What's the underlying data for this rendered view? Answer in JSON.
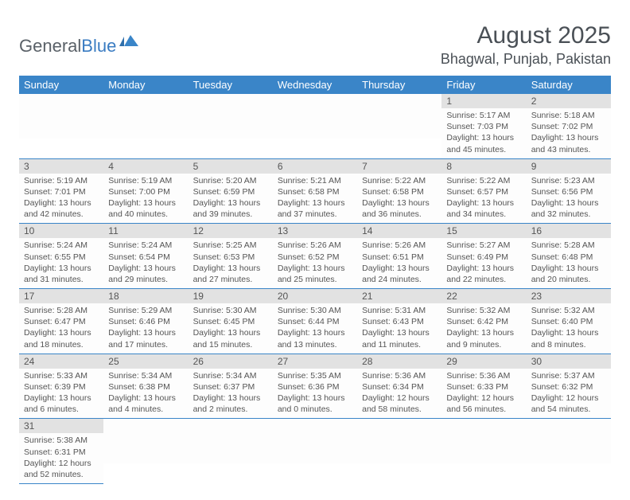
{
  "brand": {
    "part1": "General",
    "part2": "Blue"
  },
  "title": "August 2025",
  "location": "Bhagwal, Punjab, Pakistan",
  "colors": {
    "header_bg": "#3a85c8",
    "header_text": "#ffffff",
    "daynum_bg": "#e2e2e2",
    "text": "#555555",
    "row_border": "#3a85c8",
    "brand_gray": "#5a6168",
    "brand_blue": "#3a7cc2"
  },
  "day_headers": [
    "Sunday",
    "Monday",
    "Tuesday",
    "Wednesday",
    "Thursday",
    "Friday",
    "Saturday"
  ],
  "weeks": [
    [
      {
        "n": "",
        "sr": "",
        "ss": "",
        "dl": ""
      },
      {
        "n": "",
        "sr": "",
        "ss": "",
        "dl": ""
      },
      {
        "n": "",
        "sr": "",
        "ss": "",
        "dl": ""
      },
      {
        "n": "",
        "sr": "",
        "ss": "",
        "dl": ""
      },
      {
        "n": "",
        "sr": "",
        "ss": "",
        "dl": ""
      },
      {
        "n": "1",
        "sr": "Sunrise: 5:17 AM",
        "ss": "Sunset: 7:03 PM",
        "dl": "Daylight: 13 hours and 45 minutes."
      },
      {
        "n": "2",
        "sr": "Sunrise: 5:18 AM",
        "ss": "Sunset: 7:02 PM",
        "dl": "Daylight: 13 hours and 43 minutes."
      }
    ],
    [
      {
        "n": "3",
        "sr": "Sunrise: 5:19 AM",
        "ss": "Sunset: 7:01 PM",
        "dl": "Daylight: 13 hours and 42 minutes."
      },
      {
        "n": "4",
        "sr": "Sunrise: 5:19 AM",
        "ss": "Sunset: 7:00 PM",
        "dl": "Daylight: 13 hours and 40 minutes."
      },
      {
        "n": "5",
        "sr": "Sunrise: 5:20 AM",
        "ss": "Sunset: 6:59 PM",
        "dl": "Daylight: 13 hours and 39 minutes."
      },
      {
        "n": "6",
        "sr": "Sunrise: 5:21 AM",
        "ss": "Sunset: 6:58 PM",
        "dl": "Daylight: 13 hours and 37 minutes."
      },
      {
        "n": "7",
        "sr": "Sunrise: 5:22 AM",
        "ss": "Sunset: 6:58 PM",
        "dl": "Daylight: 13 hours and 36 minutes."
      },
      {
        "n": "8",
        "sr": "Sunrise: 5:22 AM",
        "ss": "Sunset: 6:57 PM",
        "dl": "Daylight: 13 hours and 34 minutes."
      },
      {
        "n": "9",
        "sr": "Sunrise: 5:23 AM",
        "ss": "Sunset: 6:56 PM",
        "dl": "Daylight: 13 hours and 32 minutes."
      }
    ],
    [
      {
        "n": "10",
        "sr": "Sunrise: 5:24 AM",
        "ss": "Sunset: 6:55 PM",
        "dl": "Daylight: 13 hours and 31 minutes."
      },
      {
        "n": "11",
        "sr": "Sunrise: 5:24 AM",
        "ss": "Sunset: 6:54 PM",
        "dl": "Daylight: 13 hours and 29 minutes."
      },
      {
        "n": "12",
        "sr": "Sunrise: 5:25 AM",
        "ss": "Sunset: 6:53 PM",
        "dl": "Daylight: 13 hours and 27 minutes."
      },
      {
        "n": "13",
        "sr": "Sunrise: 5:26 AM",
        "ss": "Sunset: 6:52 PM",
        "dl": "Daylight: 13 hours and 25 minutes."
      },
      {
        "n": "14",
        "sr": "Sunrise: 5:26 AM",
        "ss": "Sunset: 6:51 PM",
        "dl": "Daylight: 13 hours and 24 minutes."
      },
      {
        "n": "15",
        "sr": "Sunrise: 5:27 AM",
        "ss": "Sunset: 6:49 PM",
        "dl": "Daylight: 13 hours and 22 minutes."
      },
      {
        "n": "16",
        "sr": "Sunrise: 5:28 AM",
        "ss": "Sunset: 6:48 PM",
        "dl": "Daylight: 13 hours and 20 minutes."
      }
    ],
    [
      {
        "n": "17",
        "sr": "Sunrise: 5:28 AM",
        "ss": "Sunset: 6:47 PM",
        "dl": "Daylight: 13 hours and 18 minutes."
      },
      {
        "n": "18",
        "sr": "Sunrise: 5:29 AM",
        "ss": "Sunset: 6:46 PM",
        "dl": "Daylight: 13 hours and 17 minutes."
      },
      {
        "n": "19",
        "sr": "Sunrise: 5:30 AM",
        "ss": "Sunset: 6:45 PM",
        "dl": "Daylight: 13 hours and 15 minutes."
      },
      {
        "n": "20",
        "sr": "Sunrise: 5:30 AM",
        "ss": "Sunset: 6:44 PM",
        "dl": "Daylight: 13 hours and 13 minutes."
      },
      {
        "n": "21",
        "sr": "Sunrise: 5:31 AM",
        "ss": "Sunset: 6:43 PM",
        "dl": "Daylight: 13 hours and 11 minutes."
      },
      {
        "n": "22",
        "sr": "Sunrise: 5:32 AM",
        "ss": "Sunset: 6:42 PM",
        "dl": "Daylight: 13 hours and 9 minutes."
      },
      {
        "n": "23",
        "sr": "Sunrise: 5:32 AM",
        "ss": "Sunset: 6:40 PM",
        "dl": "Daylight: 13 hours and 8 minutes."
      }
    ],
    [
      {
        "n": "24",
        "sr": "Sunrise: 5:33 AM",
        "ss": "Sunset: 6:39 PM",
        "dl": "Daylight: 13 hours and 6 minutes."
      },
      {
        "n": "25",
        "sr": "Sunrise: 5:34 AM",
        "ss": "Sunset: 6:38 PM",
        "dl": "Daylight: 13 hours and 4 minutes."
      },
      {
        "n": "26",
        "sr": "Sunrise: 5:34 AM",
        "ss": "Sunset: 6:37 PM",
        "dl": "Daylight: 13 hours and 2 minutes."
      },
      {
        "n": "27",
        "sr": "Sunrise: 5:35 AM",
        "ss": "Sunset: 6:36 PM",
        "dl": "Daylight: 13 hours and 0 minutes."
      },
      {
        "n": "28",
        "sr": "Sunrise: 5:36 AM",
        "ss": "Sunset: 6:34 PM",
        "dl": "Daylight: 12 hours and 58 minutes."
      },
      {
        "n": "29",
        "sr": "Sunrise: 5:36 AM",
        "ss": "Sunset: 6:33 PM",
        "dl": "Daylight: 12 hours and 56 minutes."
      },
      {
        "n": "30",
        "sr": "Sunrise: 5:37 AM",
        "ss": "Sunset: 6:32 PM",
        "dl": "Daylight: 12 hours and 54 minutes."
      }
    ],
    [
      {
        "n": "31",
        "sr": "Sunrise: 5:38 AM",
        "ss": "Sunset: 6:31 PM",
        "dl": "Daylight: 12 hours and 52 minutes."
      },
      {
        "n": "",
        "sr": "",
        "ss": "",
        "dl": ""
      },
      {
        "n": "",
        "sr": "",
        "ss": "",
        "dl": ""
      },
      {
        "n": "",
        "sr": "",
        "ss": "",
        "dl": ""
      },
      {
        "n": "",
        "sr": "",
        "ss": "",
        "dl": ""
      },
      {
        "n": "",
        "sr": "",
        "ss": "",
        "dl": ""
      },
      {
        "n": "",
        "sr": "",
        "ss": "",
        "dl": ""
      }
    ]
  ]
}
